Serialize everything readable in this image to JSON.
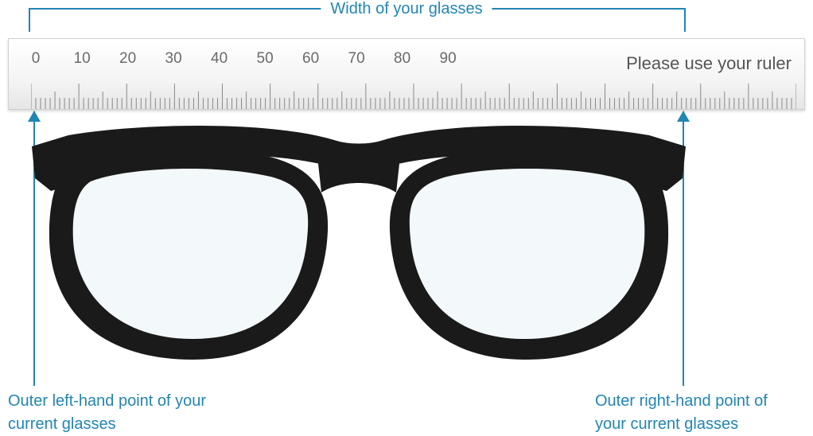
{
  "colors": {
    "accent": "#2185b5",
    "ruler_bg_top": "#ffffff",
    "ruler_bg_bottom": "#e6e6e6",
    "ruler_border": "#d0d0d0",
    "tick": "#8a8a8a",
    "ruler_text": "#6a6a6a",
    "hint_text": "#555555",
    "glasses": "#1a1a1a",
    "lens_fill": "#bed6e2"
  },
  "diagram": {
    "top_label": "Width of your glasses",
    "ruler": {
      "numbers": [
        "0",
        "10",
        "20",
        "30",
        "40",
        "50",
        "60",
        "70",
        "80",
        "90"
      ],
      "hint": "Please use your ruler",
      "major_tick_count": 17,
      "minor_per_major": 10,
      "tick_major_len": 32,
      "tick_half_len": 22,
      "tick_minor_len": 14
    },
    "left_caption": "Outer left-hand point of your current glasses",
    "right_caption": "Outer right-hand point of your current glasses"
  },
  "typography": {
    "label_fontsize": 20,
    "hint_fontsize": 22,
    "caption_fontsize": 20
  }
}
